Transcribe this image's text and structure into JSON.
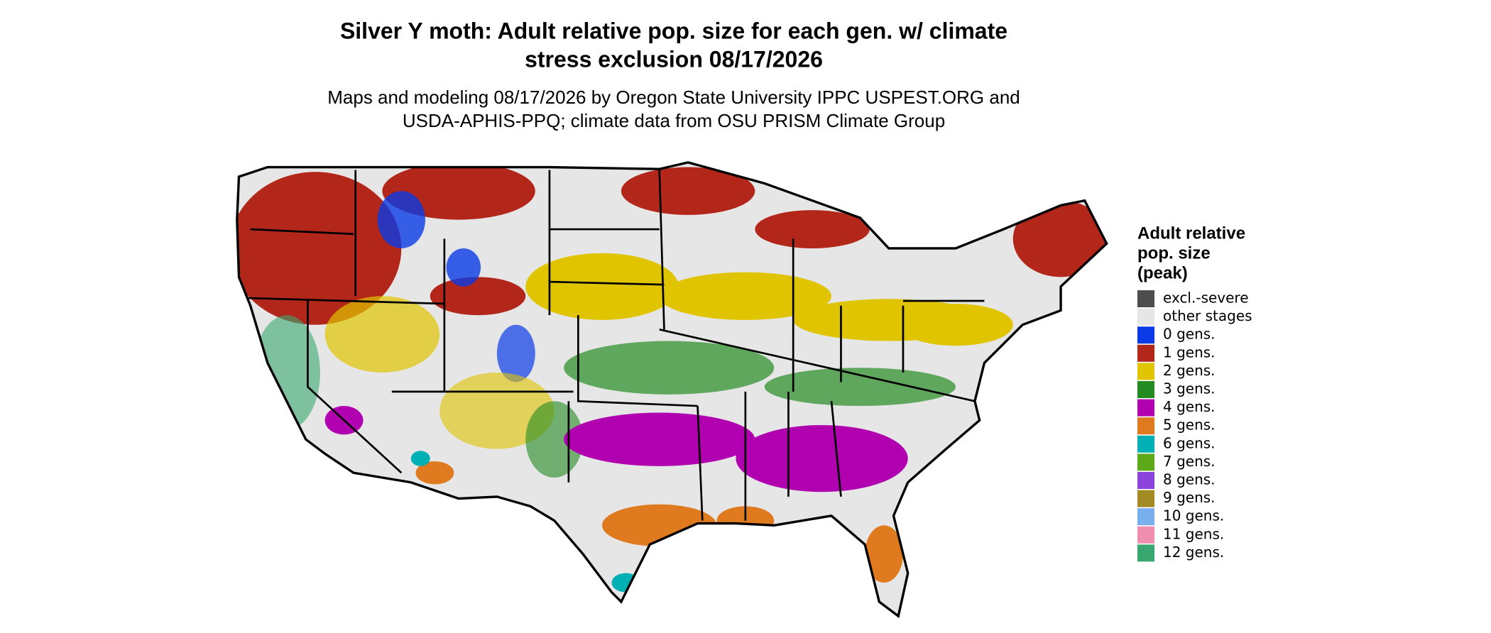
{
  "header": {
    "title": [
      "Silver Y moth: Adult relative pop. size for each gen. w/ climate",
      "stress exclusion 08/17/2026"
    ],
    "subtitle": [
      "Maps and modeling 08/17/2026 by Oregon State University IPPC USPEST.ORG and",
      "USDA-APHIS-PPQ; climate data from OSU PRISM Climate Group"
    ]
  },
  "legend": {
    "title": [
      "Adult relative",
      "pop. size",
      "(peak)"
    ],
    "items": [
      {
        "label": "excl.-severe",
        "color": "#4d4d4d"
      },
      {
        "label": "other stages",
        "color": "#e6e6e6"
      },
      {
        "label": "0 gens.",
        "color": "#0a3be6"
      },
      {
        "label": "1 gens.",
        "color": "#b3261a"
      },
      {
        "label": "2 gens.",
        "color": "#e0c400"
      },
      {
        "label": "3 gens.",
        "color": "#238b22"
      },
      {
        "label": "4 gens.",
        "color": "#b000b0"
      },
      {
        "label": "5 gens.",
        "color": "#e07a1e"
      },
      {
        "label": "6 gens.",
        "color": "#00b0b4"
      },
      {
        "label": "7 gens.",
        "color": "#5ea91a"
      },
      {
        "label": "8 gens.",
        "color": "#8a44dc"
      },
      {
        "label": "9 gens.",
        "color": "#a38a22"
      },
      {
        "label": "10 gens.",
        "color": "#78b0ee"
      },
      {
        "label": "11 gens.",
        "color": "#f08eb0"
      },
      {
        "label": "12 gens.",
        "color": "#38a870"
      }
    ]
  }
}
